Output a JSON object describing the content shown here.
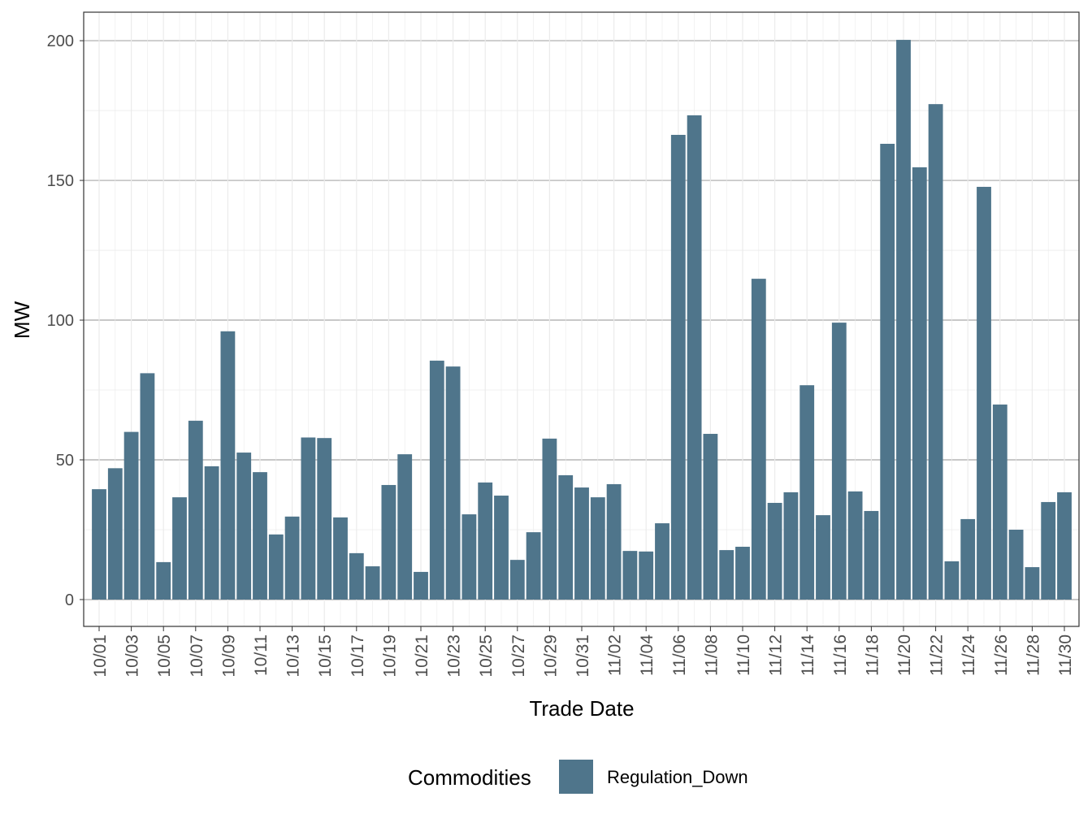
{
  "chart_data": {
    "type": "bar",
    "xlabel": "Trade Date",
    "ylabel": "MW",
    "ylim": [
      -9.6,
      210.2
    ],
    "yticks": [
      0,
      50,
      100,
      150,
      200
    ],
    "grid": true,
    "legend": {
      "title": "Commodities",
      "placement": "bottom",
      "entries": [
        "Regulation_Down"
      ]
    },
    "colors": {
      "Regulation_Down": "#4f758b"
    },
    "categories": [
      "10/01",
      "10/02",
      "10/03",
      "10/04",
      "10/05",
      "10/06",
      "10/07",
      "10/08",
      "10/09",
      "10/10",
      "10/11",
      "10/12",
      "10/13",
      "10/14",
      "10/15",
      "10/16",
      "10/17",
      "10/18",
      "10/19",
      "10/20",
      "10/21",
      "10/22",
      "10/23",
      "10/24",
      "10/25",
      "10/26",
      "10/27",
      "10/28",
      "10/29",
      "10/30",
      "10/31",
      "11/01",
      "11/02",
      "11/03",
      "11/04",
      "11/05",
      "11/06",
      "11/07",
      "11/08",
      "11/09",
      "11/10",
      "11/11",
      "11/12",
      "11/13",
      "11/14",
      "11/15",
      "11/16",
      "11/17",
      "11/18",
      "11/19",
      "11/20",
      "11/21",
      "11/22",
      "11/23",
      "11/24",
      "11/25",
      "11/26",
      "11/27",
      "11/28",
      "11/29",
      "11/30"
    ],
    "series": [
      {
        "name": "Regulation_Down",
        "values": [
          39.5,
          47,
          60,
          81,
          13.4,
          36.6,
          64,
          47.7,
          96,
          52.6,
          45.6,
          23.3,
          29.7,
          58,
          57.8,
          29.4,
          16.6,
          11.9,
          41,
          52,
          9.9,
          85.5,
          83.4,
          30.5,
          41.9,
          37.2,
          14.2,
          24.1,
          57.6,
          44.5,
          40.1,
          36.6,
          41.3,
          17.4,
          17.2,
          27.3,
          166.3,
          173.3,
          59.3,
          17.7,
          18.9,
          114.8,
          34.6,
          38.4,
          76.7,
          30.2,
          99.1,
          38.7,
          31.7,
          163.1,
          200.3,
          154.7,
          177.3,
          13.7,
          28.8,
          147.7,
          69.8,
          25,
          11.6,
          34.9,
          38.4
        ]
      }
    ]
  }
}
